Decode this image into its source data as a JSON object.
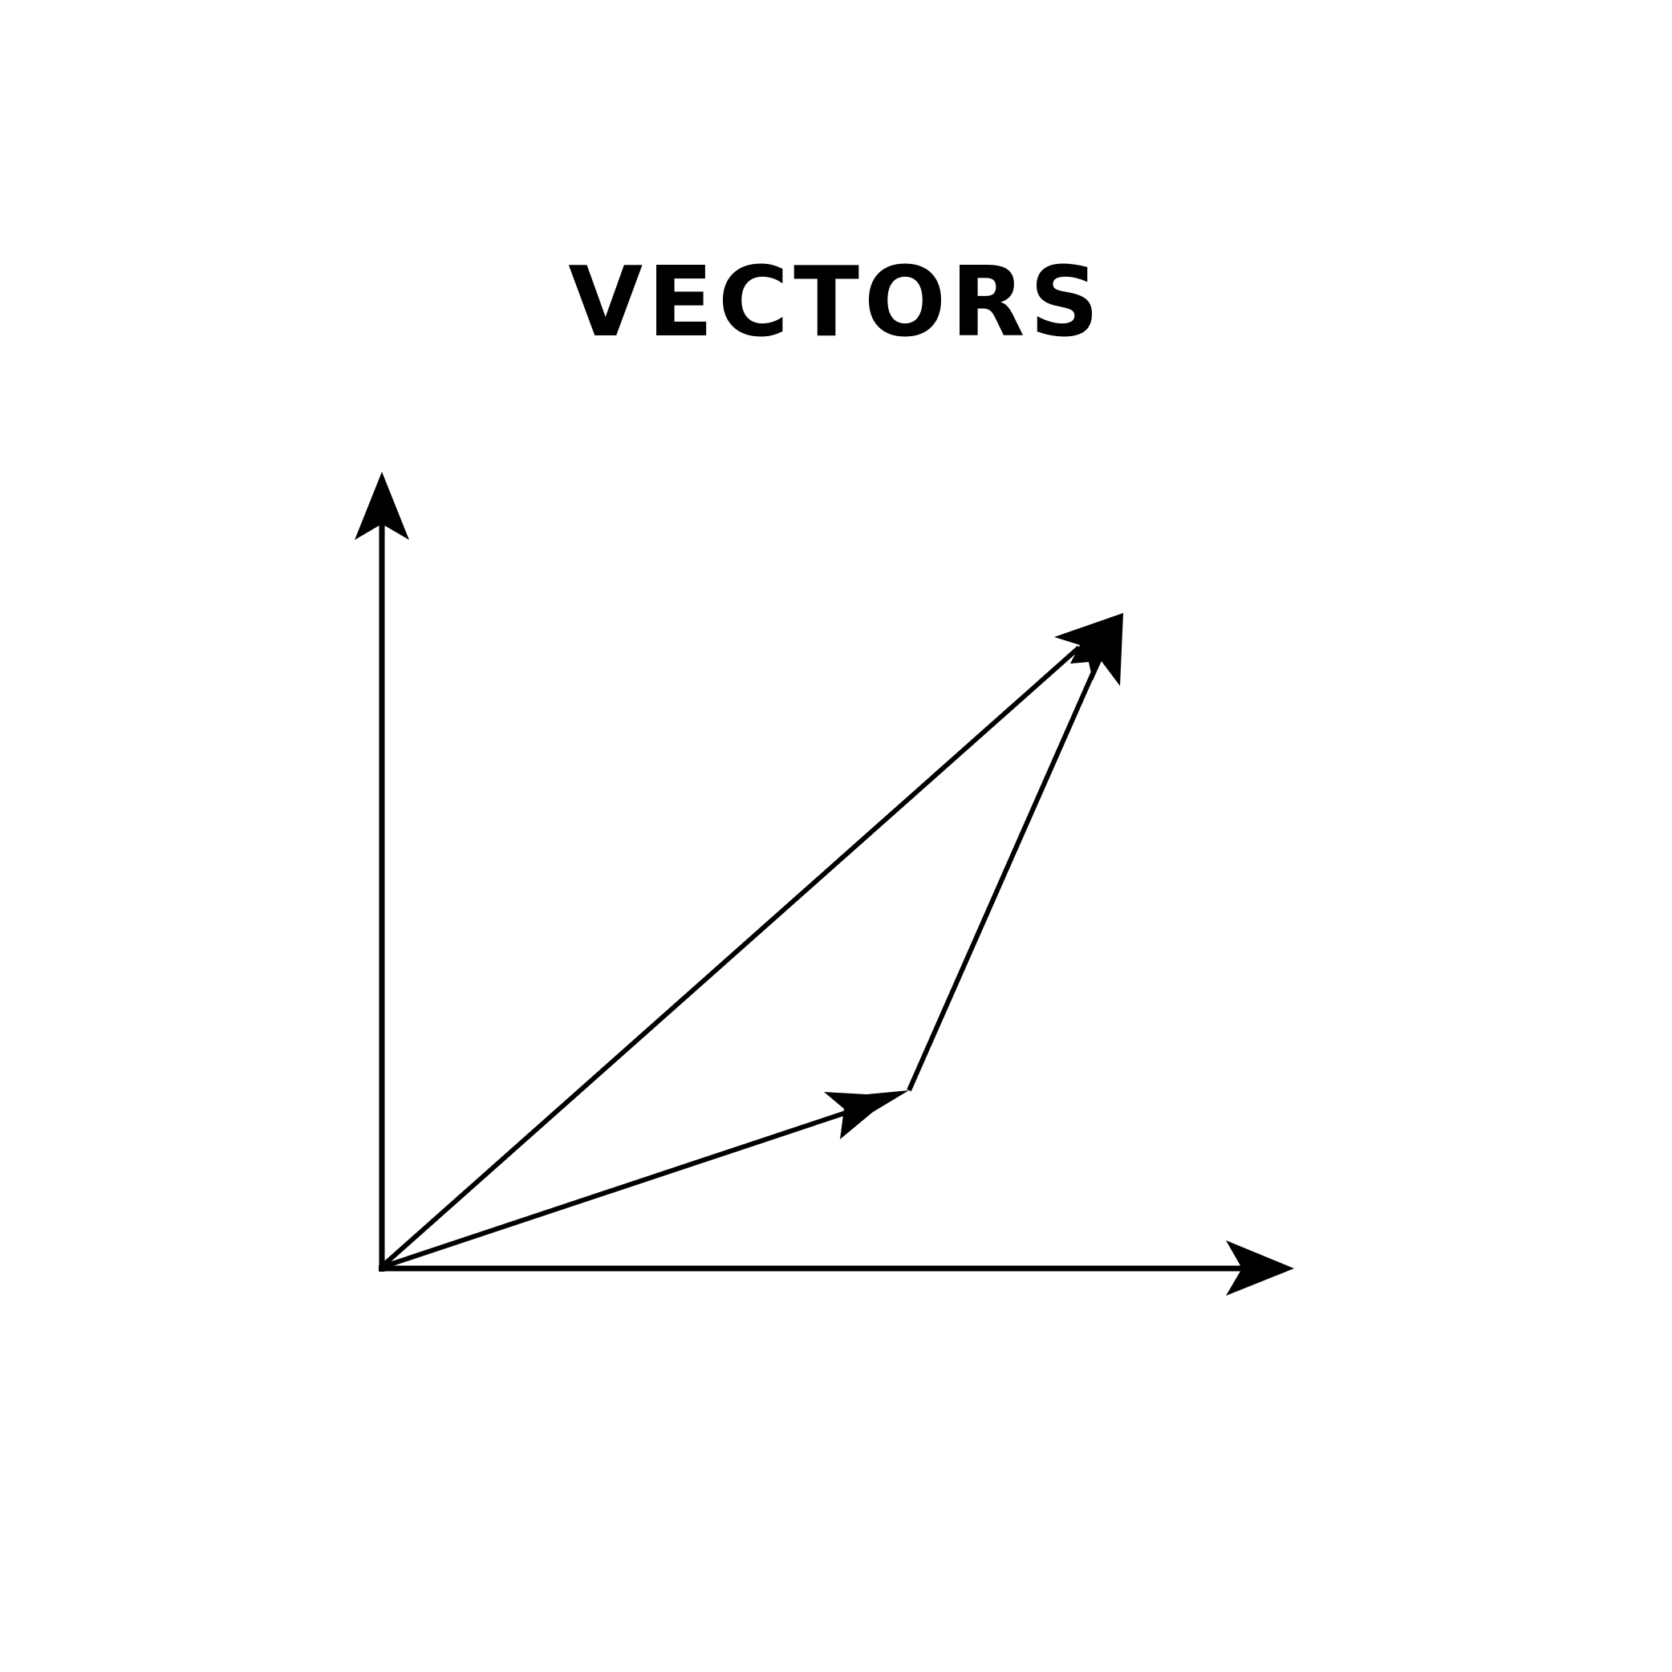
{
  "title": "VECTORS",
  "colors": {
    "background": "#ffffff",
    "ink": "#000000"
  },
  "diagram": {
    "description_free": true,
    "elements": {
      "y_axis": "y-axis-arrow",
      "x_axis": "x-axis-arrow",
      "vector_a": "vector-a-arrow",
      "vector_b": "vector-b-arrow",
      "resultant": "resultant-vector-arrow"
    }
  }
}
